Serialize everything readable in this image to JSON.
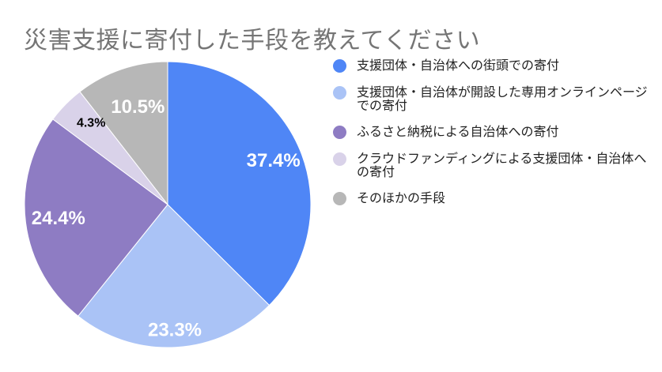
{
  "chart_data": {
    "type": "pie",
    "title": "災害支援に寄付した手段を教えてください",
    "slices": [
      {
        "label": "支援団体・自治体への街頭での寄付",
        "value": 37.4,
        "display": "37.4%",
        "color": "#4f86f6",
        "label_color": "#ffffff"
      },
      {
        "label": "支援団体・自治体が開設した専用オンラインページでの寄付",
        "value": 23.3,
        "display": "23.3%",
        "color": "#aac3f6",
        "label_color": "#ffffff"
      },
      {
        "label": "ふるさと納税による自治体への寄付",
        "value": 24.4,
        "display": "24.4%",
        "color": "#8e7cc3",
        "label_color": "#ffffff"
      },
      {
        "label": "クラウドファンディングによる支援団体・自治体への寄付",
        "value": 4.3,
        "display": "4.3%",
        "color": "#d9d2e9",
        "label_color": "#000000"
      },
      {
        "label": "そのほかの手段",
        "value": 10.5,
        "display": "10.5%",
        "color": "#b7b7b7",
        "label_color": "#ffffff"
      }
    ],
    "legend_position": "right"
  }
}
